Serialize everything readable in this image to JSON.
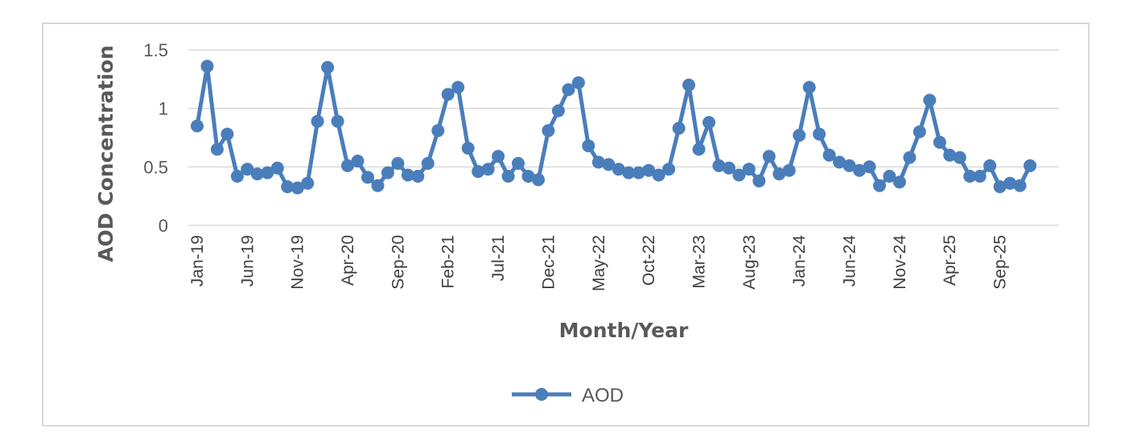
{
  "chart_data": {
    "type": "line",
    "title": "",
    "xlabel": "Month/Year",
    "ylabel": "AOD Concentration",
    "ylim": [
      0,
      1.5
    ],
    "yticks": [
      "0",
      "0.5",
      "1",
      "1.5"
    ],
    "grid": "horizontal",
    "legend_position": "bottom",
    "color": "#4a7ebb",
    "x_tick_labels": [
      "Jan-19",
      "Jun-19",
      "Nov-19",
      "Apr-20",
      "Sep-20",
      "Feb-21",
      "Jul-21",
      "Dec-21",
      "May-22",
      "Oct-22",
      "Mar-23",
      "Aug-23",
      "Jan-24",
      "Jun-24",
      "Nov-24",
      "Apr-25",
      "Sep-25"
    ],
    "series": [
      {
        "name": "AOD",
        "x": [
          "Jan-19",
          "Feb-19",
          "Mar-19",
          "Apr-19",
          "May-19",
          "Jun-19",
          "Jul-19",
          "Aug-19",
          "Sep-19",
          "Oct-19",
          "Nov-19",
          "Dec-19",
          "Jan-20",
          "Feb-20",
          "Mar-20",
          "Apr-20",
          "May-20",
          "Jun-20",
          "Jul-20",
          "Aug-20",
          "Sep-20",
          "Oct-20",
          "Nov-20",
          "Dec-20",
          "Jan-21",
          "Feb-21",
          "Mar-21",
          "Apr-21",
          "May-21",
          "Jun-21",
          "Jul-21",
          "Aug-21",
          "Sep-21",
          "Oct-21",
          "Nov-21",
          "Dec-21",
          "Jan-22",
          "Feb-22",
          "Mar-22",
          "Apr-22",
          "May-22",
          "Jun-22",
          "Jul-22",
          "Aug-22",
          "Sep-22",
          "Oct-22",
          "Nov-22",
          "Dec-22",
          "Jan-23",
          "Feb-23",
          "Mar-23",
          "Apr-23",
          "May-23",
          "Jun-23",
          "Jul-23",
          "Aug-23",
          "Sep-23",
          "Oct-23",
          "Nov-23",
          "Dec-23",
          "Jan-24",
          "Feb-24",
          "Mar-24",
          "Apr-24",
          "May-24",
          "Jun-24",
          "Jul-24",
          "Aug-24",
          "Sep-24",
          "Oct-24",
          "Nov-24",
          "Dec-24",
          "Jan-25",
          "Feb-25",
          "Mar-25",
          "Apr-25",
          "May-25",
          "Jun-25",
          "Jul-25",
          "Aug-25",
          "Sep-25",
          "Oct-25",
          "Nov-25",
          "Dec-25"
        ],
        "values": [
          0.85,
          1.36,
          0.65,
          0.78,
          0.42,
          0.48,
          0.44,
          0.45,
          0.49,
          0.33,
          0.32,
          0.36,
          0.89,
          1.35,
          0.89,
          0.51,
          0.55,
          0.41,
          0.34,
          0.45,
          0.53,
          0.43,
          0.42,
          0.53,
          0.81,
          1.12,
          1.18,
          0.66,
          0.46,
          0.48,
          0.59,
          0.42,
          0.53,
          0.42,
          0.39,
          0.81,
          0.98,
          1.16,
          1.22,
          0.68,
          0.54,
          0.52,
          0.48,
          0.45,
          0.45,
          0.47,
          0.43,
          0.48,
          0.83,
          1.2,
          0.65,
          0.88,
          0.51,
          0.49,
          0.43,
          0.48,
          0.38,
          0.59,
          0.44,
          0.47,
          0.77,
          1.18,
          0.78,
          0.6,
          0.54,
          0.51,
          0.47,
          0.5,
          0.34,
          0.42,
          0.37,
          0.58,
          0.8,
          1.07,
          0.71,
          0.6,
          0.58,
          0.42,
          0.42,
          0.51,
          0.33,
          0.36,
          0.34,
          0.51
        ]
      }
    ]
  }
}
